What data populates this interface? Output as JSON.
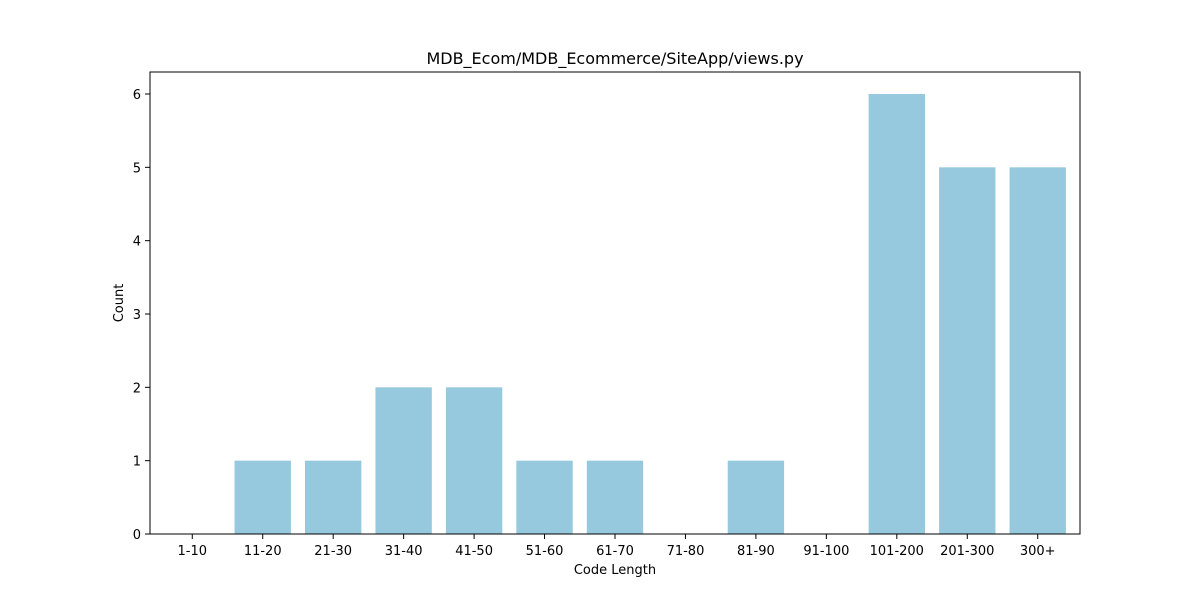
{
  "chart_data": {
    "type": "bar",
    "title": "MDB_Ecom/MDB_Ecommerce/SiteApp/views.py",
    "xlabel": "Code Length",
    "ylabel": "Count",
    "categories": [
      "1-10",
      "11-20",
      "21-30",
      "31-40",
      "41-50",
      "51-60",
      "61-70",
      "71-80",
      "81-90",
      "91-100",
      "101-200",
      "201-300",
      "300+"
    ],
    "values": [
      0,
      1,
      1,
      2,
      2,
      1,
      1,
      0,
      1,
      0,
      6,
      5,
      5
    ],
    "ylim": [
      0,
      6.3
    ],
    "yticks": [
      0,
      1,
      2,
      3,
      4,
      5,
      6
    ],
    "bar_color": "#96c9de",
    "grid": false,
    "legend": "none"
  }
}
